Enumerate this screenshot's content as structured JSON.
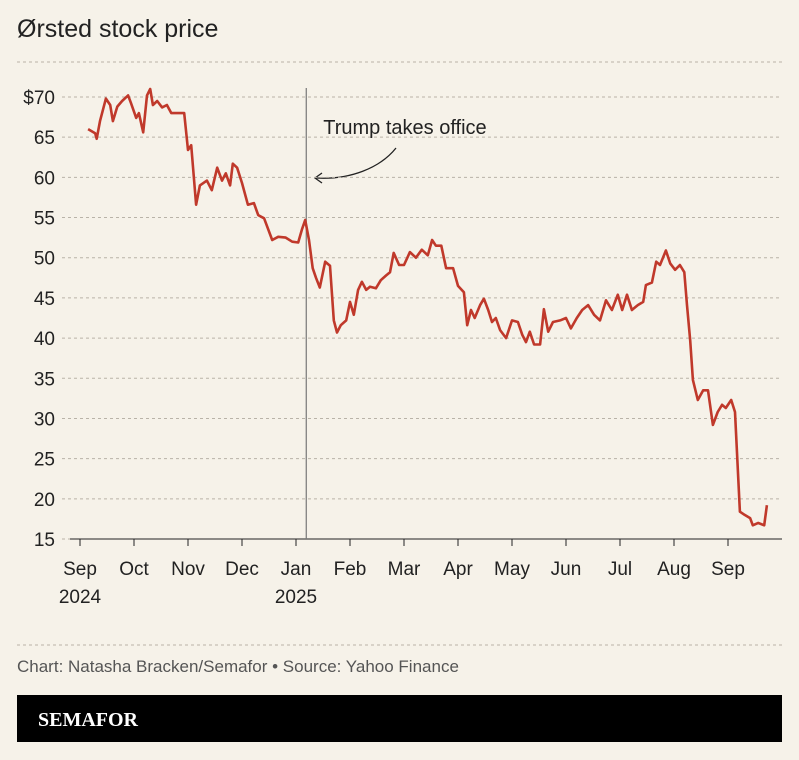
{
  "chart_data": {
    "type": "line",
    "title": "Ørsted stock price",
    "source": "Chart: Natasha Bracken/Semafor • Source: Yahoo Finance",
    "brand": "SEMAFOR",
    "annotation": {
      "text": "Trump takes office",
      "x": 4.19
    },
    "xlim": [
      0,
      12.95
    ],
    "xticks": [
      {
        "value": 0,
        "label": "Sep 2024"
      },
      {
        "value": 1,
        "label": "Oct"
      },
      {
        "value": 2,
        "label": "Nov"
      },
      {
        "value": 3,
        "label": "Dec"
      },
      {
        "value": 4,
        "label": "Jan 2025"
      },
      {
        "value": 5,
        "label": "Feb"
      },
      {
        "value": 6,
        "label": "Mar"
      },
      {
        "value": 7,
        "label": "Apr"
      },
      {
        "value": 8,
        "label": "May"
      },
      {
        "value": 9,
        "label": "Jun"
      },
      {
        "value": 10,
        "label": "Jul"
      },
      {
        "value": 11,
        "label": "Aug"
      },
      {
        "value": 12,
        "label": "Sep"
      }
    ],
    "ylim": [
      15,
      70
    ],
    "yticks": [
      {
        "value": 70,
        "label": "$70"
      },
      65,
      60,
      55,
      50,
      45,
      40,
      35,
      30,
      25,
      20,
      15
    ],
    "grid": true,
    "x": [
      0.15,
      0.28,
      0.31,
      0.37,
      0.48,
      0.56,
      0.61,
      0.69,
      0.78,
      0.89,
      0.94,
      1.04,
      1.09,
      1.17,
      1.24,
      1.3,
      1.35,
      1.43,
      1.52,
      1.61,
      1.69,
      1.81,
      1.93,
      2.0,
      2.06,
      2.15,
      2.22,
      2.35,
      2.44,
      2.54,
      2.63,
      2.7,
      2.78,
      2.83,
      2.91,
      3.0,
      3.11,
      3.22,
      3.3,
      3.41,
      3.56,
      3.67,
      3.81,
      3.93,
      4.04,
      4.11,
      4.17,
      4.24,
      4.31,
      4.37,
      4.44,
      4.54,
      4.63,
      4.7,
      4.76,
      4.83,
      4.93,
      5.0,
      5.07,
      5.15,
      5.22,
      5.3,
      5.37,
      5.48,
      5.57,
      5.67,
      5.74,
      5.81,
      5.91,
      6.0,
      6.11,
      6.22,
      6.33,
      6.44,
      6.52,
      6.59,
      6.69,
      6.78,
      6.91,
      7.0,
      7.11,
      7.17,
      7.24,
      7.31,
      7.41,
      7.48,
      7.56,
      7.63,
      7.7,
      7.78,
      7.89,
      8.0,
      8.11,
      8.19,
      8.26,
      8.33,
      8.41,
      8.52,
      8.59,
      8.67,
      8.76,
      8.89,
      9.0,
      9.09,
      9.2,
      9.3,
      9.41,
      9.52,
      9.63,
      9.74,
      9.85,
      9.96,
      10.04,
      10.13,
      10.22,
      10.33,
      10.43,
      10.48,
      10.59,
      10.67,
      10.74,
      10.85,
      10.93,
      11.02,
      11.11,
      11.19,
      11.24,
      11.3,
      11.35,
      11.44,
      11.54,
      11.63,
      11.72,
      11.81,
      11.89,
      11.96,
      12.06,
      12.13,
      12.22,
      12.31,
      12.41,
      12.46,
      12.56,
      12.67,
      12.72
    ],
    "series": [
      {
        "name": "Ørsted",
        "color": "#c0392b",
        "values": [
          66,
          65.5,
          64.8,
          67,
          69.8,
          69,
          67,
          68.8,
          69.5,
          70.2,
          69.3,
          67.4,
          68,
          65.6,
          70.2,
          71,
          69,
          69.5,
          68.7,
          69,
          68,
          68,
          68,
          63.4,
          64,
          56.6,
          59,
          59.6,
          58.4,
          61.2,
          59.6,
          60.5,
          59,
          61.7,
          61.2,
          59.3,
          56.6,
          56.8,
          55.3,
          54.9,
          52.2,
          52.6,
          52.5,
          52,
          51.9,
          53.5,
          54.7,
          52.2,
          48.7,
          47.5,
          46.3,
          49.5,
          49,
          42.2,
          40.7,
          41.6,
          42.2,
          44.5,
          42.9,
          46,
          47,
          46,
          46.4,
          46.2,
          47.2,
          47.8,
          48.2,
          50.6,
          49.1,
          49.1,
          50.7,
          50,
          51,
          50.3,
          52.2,
          51.5,
          51.5,
          48.7,
          48.7,
          46.5,
          45.7,
          41.6,
          43.5,
          42.5,
          44.1,
          44.9,
          43.5,
          42,
          42.5,
          41,
          40,
          42.2,
          42,
          40.4,
          39.5,
          40.8,
          39.2,
          39.2,
          43.6,
          40.8,
          42,
          42.2,
          42.5,
          41.2,
          42.5,
          43.5,
          44.1,
          42.9,
          42.2,
          44.7,
          43.5,
          45.4,
          43.5,
          45.4,
          43.5,
          44.1,
          44.5,
          46.6,
          46.9,
          49.5,
          49.1,
          50.9,
          49.3,
          48.5,
          49.1,
          48.2,
          44.1,
          39.7,
          34.8,
          32.3,
          33.5,
          33.5,
          29.2,
          30.8,
          31.7,
          31.3,
          32.3,
          30.8,
          18.4,
          18,
          17.6,
          16.7,
          17,
          16.7,
          19.2
        ]
      }
    ]
  }
}
